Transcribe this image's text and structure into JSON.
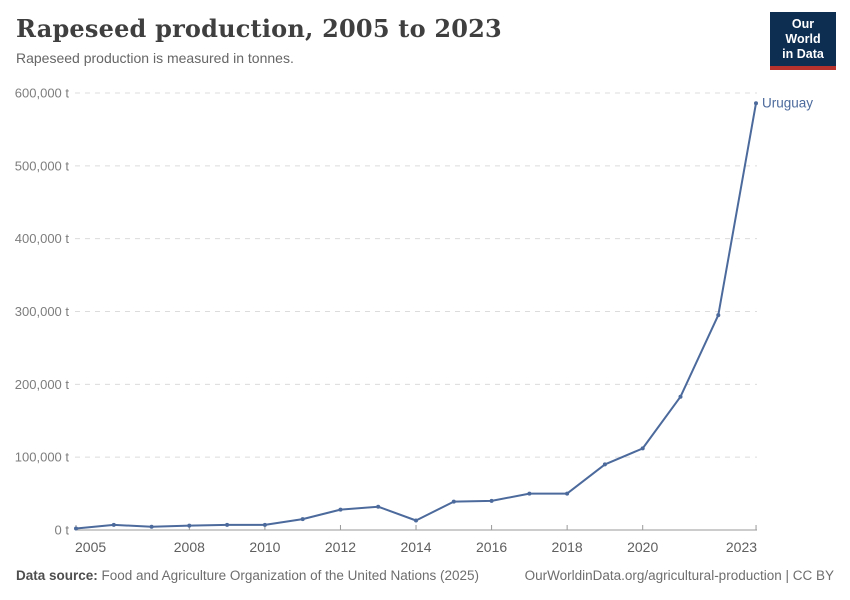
{
  "header": {
    "title": "Rapeseed production, 2005 to 2023",
    "subtitle": "Rapeseed production is measured in tonnes."
  },
  "logo": {
    "line1": "Our World",
    "line2": "in Data"
  },
  "colors": {
    "series_blue": "#4c6a9c",
    "logo_background": "#0d2d51",
    "logo_red_bar": "#b5332c",
    "gridline": "#dcdcdc",
    "axis_line": "#999999",
    "y_tick_label": "#7d7d7d",
    "x_tick_label": "#5f5f5f"
  },
  "chart_data": {
    "type": "line",
    "title": "Rapeseed production, 2005 to 2023",
    "unit": "tonnes",
    "xlabel": "",
    "ylabel": "",
    "xlim": [
      2005,
      2023
    ],
    "ylim": [
      0,
      600000
    ],
    "grid": "horizontal-dashed",
    "legend_position": "end-of-line-label",
    "x": [
      2005,
      2006,
      2007,
      2008,
      2009,
      2010,
      2011,
      2012,
      2013,
      2014,
      2015,
      2016,
      2017,
      2018,
      2019,
      2020,
      2021,
      2022,
      2023
    ],
    "series": [
      {
        "name": "Uruguay",
        "color": "#4c6a9c",
        "values": [
          2000,
          7000,
          4500,
          6000,
          7000,
          7000,
          15000,
          28000,
          32000,
          13000,
          39000,
          40000,
          50000,
          50000,
          90000,
          112000,
          183000,
          295000,
          586000
        ]
      }
    ],
    "x_ticks": [
      {
        "value": 2005,
        "label": "2005"
      },
      {
        "value": 2008,
        "label": "2008"
      },
      {
        "value": 2010,
        "label": "2010"
      },
      {
        "value": 2012,
        "label": "2012"
      },
      {
        "value": 2014,
        "label": "2014"
      },
      {
        "value": 2016,
        "label": "2016"
      },
      {
        "value": 2018,
        "label": "2018"
      },
      {
        "value": 2020,
        "label": "2020"
      },
      {
        "value": 2023,
        "label": "2023"
      }
    ],
    "y_ticks": [
      {
        "value": 0,
        "label": "0 t"
      },
      {
        "value": 100000,
        "label": "100,000 t"
      },
      {
        "value": 200000,
        "label": "200,000 t"
      },
      {
        "value": 300000,
        "label": "300,000 t"
      },
      {
        "value": 400000,
        "label": "400,000 t"
      },
      {
        "value": 500000,
        "label": "500,000 t"
      },
      {
        "value": 600000,
        "label": "600,000 t"
      }
    ]
  },
  "footer": {
    "source_label": "Data source:",
    "source_text": " Food and Agriculture Organization of the United Nations (2025)",
    "credit_text": "OurWorldinData.org/agricultural-production | CC BY"
  }
}
